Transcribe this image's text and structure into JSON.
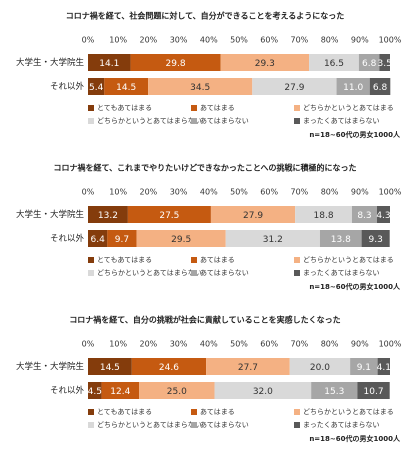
{
  "chart_data": [
    {
      "type": "bar",
      "orientation": "horizontal",
      "stacked": true,
      "title": "コロナ禍を経て、社会問題に対して、自分ができることを考えるようになった",
      "categories": [
        "大学生・大学院生",
        "それ以外"
      ],
      "series": [
        {
          "name": "とてもあてはまる",
          "color": "#843c0c",
          "values": [
            14.1,
            5.4
          ]
        },
        {
          "name": "あてはまる",
          "color": "#c55a11",
          "values": [
            29.8,
            14.5
          ]
        },
        {
          "name": "どちらかというとあてはまる",
          "color": "#f4b183",
          "values": [
            29.3,
            34.5
          ]
        },
        {
          "name": "どちらかというとあてはまらない",
          "color": "#d9d9d9",
          "values": [
            16.5,
            27.9
          ]
        },
        {
          "name": "あてはまらない",
          "color": "#a6a6a6",
          "values": [
            6.8,
            11.0
          ],
          "value_labels": [
            "6.8",
            "11.0"
          ]
        },
        {
          "name": "まったくあてはまらない",
          "color": "#595959",
          "values": [
            3.5,
            6.8
          ]
        }
      ],
      "xlim": [
        0,
        100
      ],
      "xticks": [
        {
          "value": 0,
          "label": "0%"
        },
        {
          "value": 10,
          "label": "10%"
        },
        {
          "value": 20,
          "label": "20%"
        },
        {
          "value": 30,
          "label": "30%"
        },
        {
          "value": 40,
          "label": "40%"
        },
        {
          "value": 50,
          "label": "50%"
        },
        {
          "value": 60,
          "label": "60%"
        },
        {
          "value": 70,
          "label": "70%"
        },
        {
          "value": 80,
          "label": "80%"
        },
        {
          "value": 90,
          "label": "90%"
        },
        {
          "value": 100,
          "label": "100%"
        }
      ],
      "note": "n=18~60代の男女1000人"
    },
    {
      "type": "bar",
      "orientation": "horizontal",
      "stacked": true,
      "title": "コロナ禍を経て、これまでやりたいけどできなかったことへの挑戦に積極的になった",
      "categories": [
        "大学生・大学院生",
        "それ以外"
      ],
      "series": [
        {
          "name": "とてもあてはまる",
          "color": "#843c0c",
          "values": [
            13.2,
            6.4
          ]
        },
        {
          "name": "あてはまる",
          "color": "#c55a11",
          "values": [
            27.5,
            9.7
          ]
        },
        {
          "name": "どちらかというとあてはまる",
          "color": "#f4b183",
          "values": [
            27.9,
            29.5
          ]
        },
        {
          "name": "どちらかというとあてはまらない",
          "color": "#d9d9d9",
          "values": [
            18.8,
            31.2
          ]
        },
        {
          "name": "あてはまらない",
          "color": "#a6a6a6",
          "values": [
            8.3,
            13.8
          ]
        },
        {
          "name": "まったくあてはまらない",
          "color": "#595959",
          "values": [
            4.3,
            9.3
          ]
        }
      ],
      "xlim": [
        0,
        100
      ],
      "xticks": [
        {
          "value": 0,
          "label": "0%"
        },
        {
          "value": 10,
          "label": "10%"
        },
        {
          "value": 20,
          "label": "20%"
        },
        {
          "value": 30,
          "label": "30%"
        },
        {
          "value": 40,
          "label": "40%"
        },
        {
          "value": 50,
          "label": "50%"
        },
        {
          "value": 60,
          "label": "60%"
        },
        {
          "value": 70,
          "label": "70%"
        },
        {
          "value": 80,
          "label": "80%"
        },
        {
          "value": 90,
          "label": "90%"
        },
        {
          "value": 100,
          "label": "100%"
        }
      ],
      "note": "n=18~60代の男女1000人"
    },
    {
      "type": "bar",
      "orientation": "horizontal",
      "stacked": true,
      "title": "コロナ禍を経て、自分の挑戦が社会に貢献していることを実感したくなった",
      "categories": [
        "大学生・大学院生",
        "それ以外"
      ],
      "series": [
        {
          "name": "とてもあてはまる",
          "color": "#843c0c",
          "values": [
            14.5,
            4.5
          ]
        },
        {
          "name": "あてはまる",
          "color": "#c55a11",
          "values": [
            24.6,
            12.4
          ]
        },
        {
          "name": "どちらかというとあてはまる",
          "color": "#f4b183",
          "values": [
            27.7,
            25.0
          ],
          "value_labels": [
            "27.7",
            "25.0"
          ]
        },
        {
          "name": "どちらかというとあてはまらない",
          "color": "#d9d9d9",
          "values": [
            20.0,
            32.0
          ],
          "value_labels": [
            "20.0",
            "32.0"
          ]
        },
        {
          "name": "あてはまらない",
          "color": "#a6a6a6",
          "values": [
            9.1,
            15.3
          ]
        },
        {
          "name": "まったくあてはまらない",
          "color": "#595959",
          "values": [
            4.1,
            10.7
          ]
        }
      ],
      "xlim": [
        0,
        100
      ],
      "xticks": [
        {
          "value": 0,
          "label": "0%"
        },
        {
          "value": 10,
          "label": "10%"
        },
        {
          "value": 20,
          "label": "20%"
        },
        {
          "value": 30,
          "label": "30%"
        },
        {
          "value": 40,
          "label": "40%"
        },
        {
          "value": 50,
          "label": "50%"
        },
        {
          "value": 60,
          "label": "60%"
        },
        {
          "value": 70,
          "label": "70%"
        },
        {
          "value": 80,
          "label": "80%"
        },
        {
          "value": 90,
          "label": "90%"
        },
        {
          "value": 100,
          "label": "100%"
        }
      ],
      "note": "n=18~60代の男女1000人"
    }
  ]
}
